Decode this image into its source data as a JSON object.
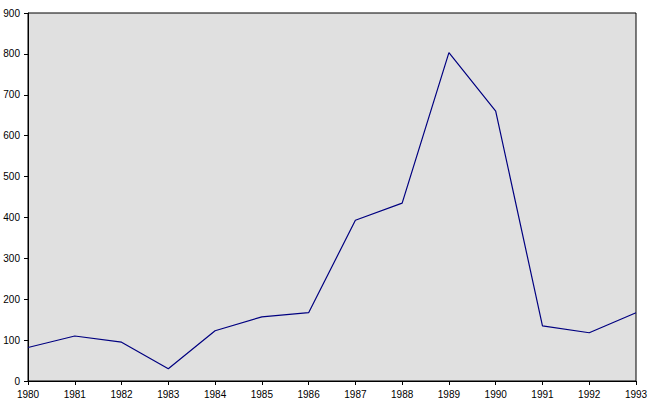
{
  "chart_data": {
    "type": "line",
    "categories": [
      "1980",
      "1981",
      "1982",
      "1983",
      "1984",
      "1985",
      "1986",
      "1987",
      "1988",
      "1989",
      "1990",
      "1991",
      "1992",
      "1993"
    ],
    "values": [
      82,
      110,
      95,
      30,
      123,
      157,
      167,
      393,
      435,
      803,
      660,
      135,
      118,
      167
    ],
    "color": "#000080",
    "ylim": [
      0,
      900
    ],
    "yticks": [
      0,
      100,
      200,
      300,
      400,
      500,
      600,
      700,
      800,
      900
    ],
    "grid": false
  }
}
